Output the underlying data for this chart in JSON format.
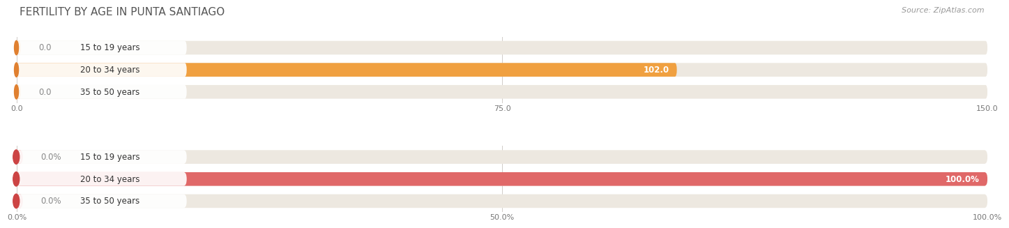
{
  "title": "FERTILITY BY AGE IN PUNTA SANTIAGO",
  "source": "Source: ZipAtlas.com",
  "top_chart": {
    "categories": [
      "15 to 19 years",
      "20 to 34 years",
      "35 to 50 years"
    ],
    "values": [
      0.0,
      102.0,
      0.0
    ],
    "xlim": [
      0,
      150
    ],
    "xticks": [
      0.0,
      75.0,
      150.0
    ],
    "xtick_labels": [
      "0.0",
      "75.0",
      "150.0"
    ],
    "bar_color": "#F0A040",
    "bar_bg_color": "#EDE8E0",
    "circle_color": "#E08030",
    "bar_height": 0.62
  },
  "bottom_chart": {
    "categories": [
      "15 to 19 years",
      "20 to 34 years",
      "35 to 50 years"
    ],
    "values": [
      0.0,
      100.0,
      0.0
    ],
    "xlim": [
      0,
      100
    ],
    "xticks": [
      0.0,
      50.0,
      100.0
    ],
    "xtick_labels": [
      "0.0%",
      "50.0%",
      "100.0%"
    ],
    "bar_color": "#E06868",
    "bar_bg_color": "#EDE8E0",
    "circle_color": "#CC4444",
    "bar_height": 0.62
  },
  "bg_color": "#ffffff",
  "grid_color": "#d0ccc8",
  "title_fontsize": 11,
  "source_fontsize": 8,
  "label_fontsize": 8.5,
  "tick_fontsize": 8,
  "cat_fontsize": 8.5,
  "cat_label_color": "#333333",
  "value_color_inside": "#ffffff",
  "value_color_outside": "#888888"
}
